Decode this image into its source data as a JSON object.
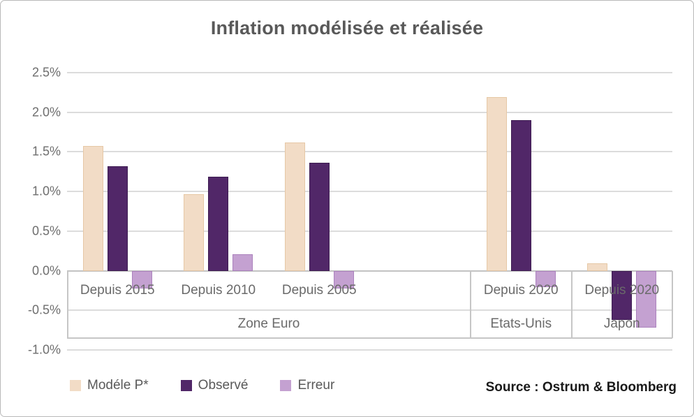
{
  "title": "Inflation modélisée et réalisée",
  "source": "Source : Ostrum & Bloomberg",
  "legend": [
    {
      "label": "Modéle P*",
      "color": "#f2dcc6"
    },
    {
      "label": "Observé",
      "color": "#512768"
    },
    {
      "label": "Erreur",
      "color": "#c4a1d1"
    }
  ],
  "chart_data": {
    "type": "bar",
    "title": "Inflation modélisée et réalisée",
    "xlabel": "",
    "ylabel": "",
    "ylim": [
      -1.0,
      2.5
    ],
    "ytick_step": 0.5,
    "yticks": [
      {
        "value": 2.5,
        "label": "2.5%"
      },
      {
        "value": 2.0,
        "label": "2.0%"
      },
      {
        "value": 1.5,
        "label": "1.5%"
      },
      {
        "value": 1.0,
        "label": "1.0%"
      },
      {
        "value": 0.5,
        "label": "0.5%"
      },
      {
        "value": 0.0,
        "label": "0.0%"
      },
      {
        "value": -0.5,
        "label": "-0.5%"
      },
      {
        "value": -1.0,
        "label": "-1.0%"
      }
    ],
    "grid": true,
    "legend_position": "bottom-left",
    "categories": [
      "Depuis 2015",
      "Depuis 2010",
      "Depuis 2005",
      "Depuis 2020",
      "Depuis 2020"
    ],
    "category_slots": [
      0,
      1,
      2,
      4,
      5
    ],
    "total_slots": 6,
    "sections": [
      {
        "label": "Zone Euro",
        "slots": 4
      },
      {
        "label": "Etats-Unis",
        "slots": 1
      },
      {
        "label": "Japon",
        "slots": 1
      }
    ],
    "series": [
      {
        "name": "Modéle P*",
        "color": "#f2dcc6",
        "border": "#e6c8a6",
        "values": [
          1.57,
          0.97,
          1.62,
          2.19,
          0.09
        ]
      },
      {
        "name": "Observé",
        "color": "#512768",
        "border": "#3e1d52",
        "values": [
          1.32,
          1.19,
          1.36,
          1.9,
          -0.62
        ]
      },
      {
        "name": "Erreur",
        "color": "#c4a1d1",
        "border": "#ab82bd",
        "values": [
          -0.22,
          0.21,
          -0.22,
          -0.21,
          -0.72
        ]
      }
    ],
    "gridline_color": "#dcdcdc",
    "axis_line_color": "#c3c3c3",
    "table_border_color": "#c6c6c6"
  }
}
